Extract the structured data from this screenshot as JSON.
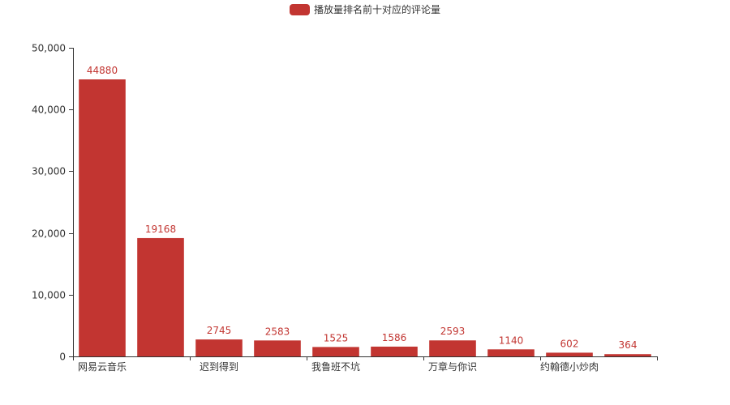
{
  "colors": {
    "bar": "#c23531",
    "axis": "#333333",
    "text": "#333333",
    "background": "#ffffff"
  },
  "legend": {
    "label": "播放量排名前十对应的评论量"
  },
  "chart_data": {
    "type": "bar",
    "title": "",
    "xlabel": "",
    "ylabel": "",
    "ylim": [
      0,
      50000
    ],
    "y_ticks": [
      0,
      10000,
      20000,
      30000,
      40000,
      50000
    ],
    "y_tick_labels": [
      "0",
      "10,000",
      "20,000",
      "30,000",
      "40,000",
      "50,000"
    ],
    "categories": [
      "网易云音乐",
      "",
      "迟到得到",
      "",
      "我鲁班不坑",
      "",
      "万章与你识",
      "",
      "约翰德小炒肉",
      ""
    ],
    "series": [
      {
        "name": "播放量排名前十对应的评论量",
        "values": [
          44880,
          19168,
          2745,
          2583,
          1525,
          1586,
          2593,
          1140,
          602,
          364
        ],
        "labels": [
          "44880",
          "19168",
          "2745",
          "2583",
          "1525",
          "1586",
          "2593",
          "1140",
          "602",
          "364"
        ]
      }
    ],
    "grid": false,
    "legend_position": "top-center"
  }
}
